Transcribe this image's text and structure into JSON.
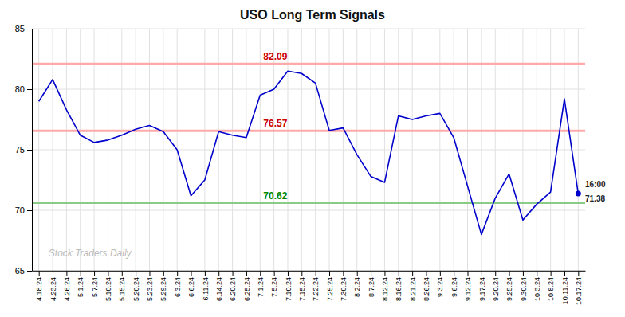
{
  "chart_data": {
    "type": "line",
    "title": "USO Long Term Signals",
    "categories": [
      "4.18.24",
      "4.23.24",
      "4.26.24",
      "5.1.24",
      "5.7.24",
      "5.10.24",
      "5.15.24",
      "5.20.24",
      "5.23.24",
      "5.29.24",
      "6.3.24",
      "6.6.24",
      "6.11.24",
      "6.14.24",
      "6.20.24",
      "6.25.24",
      "7.1.24",
      "7.5.24",
      "7.10.24",
      "7.15.24",
      "7.22.24",
      "7.25.24",
      "7.30.24",
      "8.2.24",
      "8.7.24",
      "8.12.24",
      "8.16.24",
      "8.21.24",
      "8.26.24",
      "9.3.24",
      "9.6.24",
      "9.12.24",
      "9.17.24",
      "9.20.24",
      "9.25.24",
      "9.30.24",
      "10.3.24",
      "10.8.24",
      "10.11.24",
      "10.17.24"
    ],
    "values": [
      79.0,
      80.8,
      78.3,
      76.2,
      75.6,
      75.8,
      76.2,
      76.7,
      77.0,
      76.5,
      75.0,
      71.2,
      72.5,
      76.5,
      76.2,
      76.0,
      79.5,
      80.0,
      81.5,
      81.3,
      80.5,
      76.6,
      76.8,
      74.6,
      72.8,
      72.3,
      77.8,
      77.5,
      77.8,
      78.0,
      76.0,
      72.0,
      68.0,
      71.0,
      73.0,
      69.2,
      70.5,
      71.5,
      79.2,
      71.38
    ],
    "color": "#0000cc",
    "reference_lines": [
      {
        "value": 82.09,
        "label": "82.09",
        "color": "#ffaaaa",
        "label_color": "#cc0000"
      },
      {
        "value": 76.57,
        "label": "76.57",
        "color": "#ffaaaa",
        "label_color": "#cc0000"
      },
      {
        "value": 70.62,
        "label": "70.62",
        "color": "#88cc88",
        "label_color": "#008800"
      }
    ],
    "last_point_labels": [
      "16:00",
      "71.38"
    ],
    "watermark": {
      "text": "Stock Traders Daily",
      "color": "#bbbbbb"
    },
    "ylim": [
      65,
      85
    ],
    "yticks": [
      65,
      70,
      75,
      80,
      85
    ],
    "grid": true
  }
}
